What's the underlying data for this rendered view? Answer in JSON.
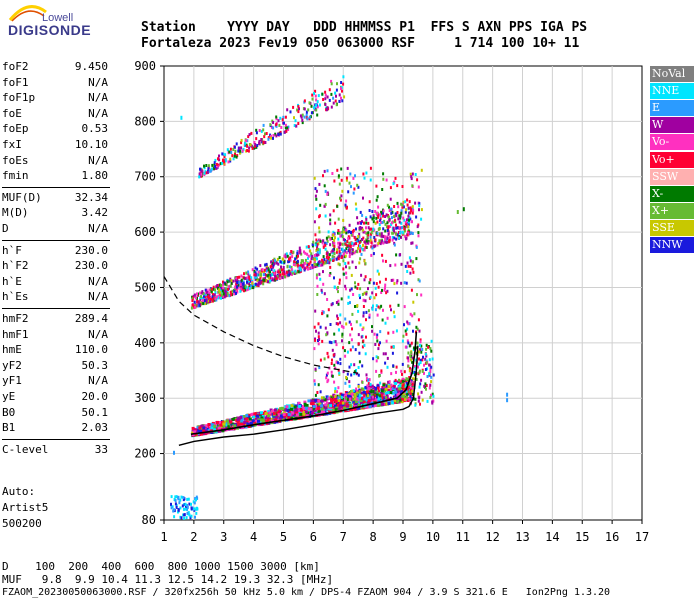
{
  "logo": {
    "top": "Lowell",
    "main": "DIGISONDE"
  },
  "header": {
    "row1": "Station    YYYY DAY   DDD HHMMSS P1  FFS S AXN PPS IGA PS",
    "row2": "Fortaleza 2023 Fev19 050 063000 RSF     1 714 100 10+ 11"
  },
  "params": [
    [
      {
        "label": "foF2",
        "value": "9.450"
      },
      {
        "label": "foF1",
        "value": "N/A"
      },
      {
        "label": "foF1p",
        "value": "N/A"
      },
      {
        "label": "foE",
        "value": "N/A"
      },
      {
        "label": "foEp",
        "value": "0.53"
      },
      {
        "label": "fxI",
        "value": "10.10"
      },
      {
        "label": "foEs",
        "value": "N/A"
      },
      {
        "label": "fmin",
        "value": "1.80"
      }
    ],
    [
      {
        "label": "MUF(D)",
        "value": "32.34"
      },
      {
        "label": "M(D)",
        "value": "3.42"
      },
      {
        "label": "D",
        "value": "N/A"
      }
    ],
    [
      {
        "label": "h`F",
        "value": "230.0"
      },
      {
        "label": "h`F2",
        "value": "230.0"
      },
      {
        "label": "h`E",
        "value": "N/A"
      },
      {
        "label": "h`Es",
        "value": "N/A"
      }
    ],
    [
      {
        "label": "hmF2",
        "value": "289.4"
      },
      {
        "label": "hmF1",
        "value": "N/A"
      },
      {
        "label": "hmE",
        "value": "110.0"
      },
      {
        "label": "yF2",
        "value": "50.3"
      },
      {
        "label": "yF1",
        "value": "N/A"
      },
      {
        "label": "yE",
        "value": "20.0"
      },
      {
        "label": "B0",
        "value": "50.1"
      },
      {
        "label": "B1",
        "value": "2.03"
      }
    ],
    [
      {
        "label": "C-level",
        "value": "33"
      }
    ]
  ],
  "autoscale": {
    "line1": "Auto:",
    "line2": "Artist5",
    "line3": "500200"
  },
  "legend": [
    {
      "label": "NoVal",
      "color": "#7f7f7f"
    },
    {
      "label": "NNE",
      "color": "#00e5ff"
    },
    {
      "label": "E",
      "color": "#2b9bff"
    },
    {
      "label": "W",
      "color": "#a000a0"
    },
    {
      "label": "Vo-",
      "color": "#ff30c0"
    },
    {
      "label": "Vo+",
      "color": "#ff0033"
    },
    {
      "label": "SSW",
      "color": "#ffb0b0"
    },
    {
      "label": "X-",
      "color": "#007a00"
    },
    {
      "label": "X+",
      "color": "#66bb33"
    },
    {
      "label": "SSE",
      "color": "#c8c800"
    },
    {
      "label": "NNW",
      "color": "#1a1add"
    }
  ],
  "footer": {
    "d_row": "D    100  200  400  600  800 1000 1500 3000 [km]",
    "muf_row": "MUF   9.8  9.9 10.4 11.3 12.5 14.2 19.3 32.3 [MHz]",
    "file_row": "FZAOM_20230050063000.RSF / 320fx256h 50 kHz 5.0 km / DPS-4 FZAOM 904 / 3.9 S 321.6 E   Ion2Png 1.3.20"
  },
  "chart_data": {
    "type": "scatter",
    "title": "",
    "xlabel": "",
    "ylabel": "",
    "xlim": [
      1,
      17
    ],
    "ylim": [
      80,
      900
    ],
    "xticks": [
      1,
      2,
      3,
      4,
      5,
      6,
      7,
      8,
      9,
      10,
      11,
      12,
      13,
      14,
      15,
      16,
      17
    ],
    "yticks": [
      80,
      200,
      300,
      400,
      500,
      600,
      700,
      800,
      900
    ],
    "grid": true,
    "traces": [
      {
        "name": "1F echo lower edge",
        "from": [
          1.9,
          235
        ],
        "to": [
          9.3,
          300
        ]
      },
      {
        "name": "2F echo lower edge",
        "from": [
          1.9,
          465
        ],
        "to": [
          9.3,
          600
        ]
      },
      {
        "name": "3F echo lower edge",
        "from": [
          2.1,
          700
        ],
        "to": [
          7.0,
          840
        ]
      }
    ],
    "true_height_profile": [
      [
        1.5,
        215
      ],
      [
        2,
        222
      ],
      [
        3,
        230
      ],
      [
        4,
        235
      ],
      [
        5,
        243
      ],
      [
        6,
        252
      ],
      [
        7,
        262
      ],
      [
        8,
        272
      ],
      [
        9,
        280
      ],
      [
        9.2,
        285
      ],
      [
        9.35,
        300
      ],
      [
        9.45,
        350
      ],
      [
        9.5,
        395
      ]
    ],
    "fitted_virtual_trace": [
      [
        1.9,
        235
      ],
      [
        3,
        243
      ],
      [
        4,
        252
      ],
      [
        5,
        260
      ],
      [
        6,
        268
      ],
      [
        7,
        278
      ],
      [
        8,
        290
      ],
      [
        8.8,
        300
      ],
      [
        9.1,
        315
      ],
      [
        9.3,
        345
      ],
      [
        9.4,
        385
      ],
      [
        9.45,
        420
      ]
    ],
    "muf_curve": [
      [
        1,
        520
      ],
      [
        1.5,
        475
      ],
      [
        2,
        450
      ],
      [
        3,
        420
      ],
      [
        4,
        395
      ],
      [
        5,
        375
      ],
      [
        6,
        360
      ],
      [
        7,
        350
      ],
      [
        7.5,
        345
      ]
    ]
  }
}
